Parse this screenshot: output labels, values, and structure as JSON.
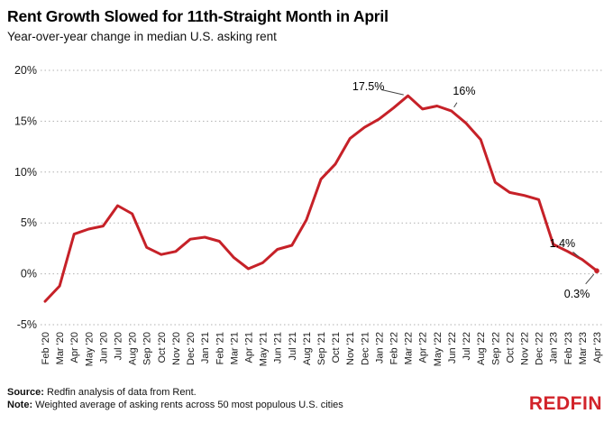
{
  "header": {
    "title": "Rent Growth Slowed for 11th-Straight Month in April",
    "subtitle": "Year-over-year change in median U.S. asking rent"
  },
  "footer": {
    "source_label": "Source:",
    "source_text": " Redfin analysis of data from Rent.",
    "note_label": "Note:",
    "note_text": " Weighted average of asking rents across 50 most populous U.S. cities",
    "logo_text": "REDFIN"
  },
  "colors": {
    "line": "#c62128",
    "logo": "#d2232a",
    "grid": "#b0b0b0",
    "leader": "#444444"
  },
  "chart_data": {
    "type": "line",
    "title": "Rent Growth Slowed for 11th-Straight Month in April",
    "subtitle": "Year-over-year change in median U.S. asking rent",
    "xlabel": "",
    "ylabel": "",
    "ylim": [
      -5,
      20
    ],
    "yticks": [
      -5,
      0,
      5,
      10,
      15,
      20
    ],
    "ytick_suffix": "%",
    "grid": "dotted-horizontal",
    "legend": "none",
    "categories": [
      "Feb '20",
      "Mar '20",
      "Apr '20",
      "May '20",
      "Jun '20",
      "Jul '20",
      "Aug '20",
      "Sep '20",
      "Oct '20",
      "Nov '20",
      "Dec '20",
      "Jan '21",
      "Feb '21",
      "Mar '21",
      "Apr '21",
      "May '21",
      "Jun '21",
      "Jul '21",
      "Aug '21",
      "Sep '21",
      "Oct '21",
      "Nov '21",
      "Dec '21",
      "Jan '22",
      "Feb '22",
      "Mar '22",
      "Apr '22",
      "May '22",
      "Jun '22",
      "Jul '22",
      "Aug '22",
      "Sep '22",
      "Oct '22",
      "Nov '22",
      "Dec '22",
      "Jan '23",
      "Feb '23",
      "Mar '23",
      "Apr '23"
    ],
    "values": [
      -2.7,
      -1.2,
      3.9,
      4.4,
      4.7,
      6.7,
      5.9,
      2.6,
      1.9,
      2.2,
      3.4,
      3.6,
      3.2,
      1.6,
      0.5,
      1.1,
      2.4,
      2.8,
      5.3,
      9.3,
      10.8,
      13.3,
      14.4,
      15.2,
      16.3,
      17.5,
      16.2,
      16.5,
      16.0,
      14.8,
      13.2,
      9.0,
      8.0,
      7.7,
      7.3,
      2.9,
      2.2,
      1.4,
      0.3
    ],
    "annotations": [
      {
        "category": "Mar '22",
        "value": 17.5,
        "label": "17.5%",
        "offset": [
          -44,
          -10
        ],
        "leader": true
      },
      {
        "category": "Jun '22",
        "value": 16.0,
        "label": "16%",
        "offset": [
          14,
          -22
        ],
        "leader": true
      },
      {
        "category": "Mar '23",
        "value": 1.4,
        "label": "1.4%",
        "offset": [
          -22,
          -18
        ],
        "leader": true
      },
      {
        "category": "Apr '23",
        "value": 0.3,
        "label": "0.3%",
        "offset": [
          -22,
          26
        ],
        "leader": true
      }
    ],
    "end_marker": true
  }
}
